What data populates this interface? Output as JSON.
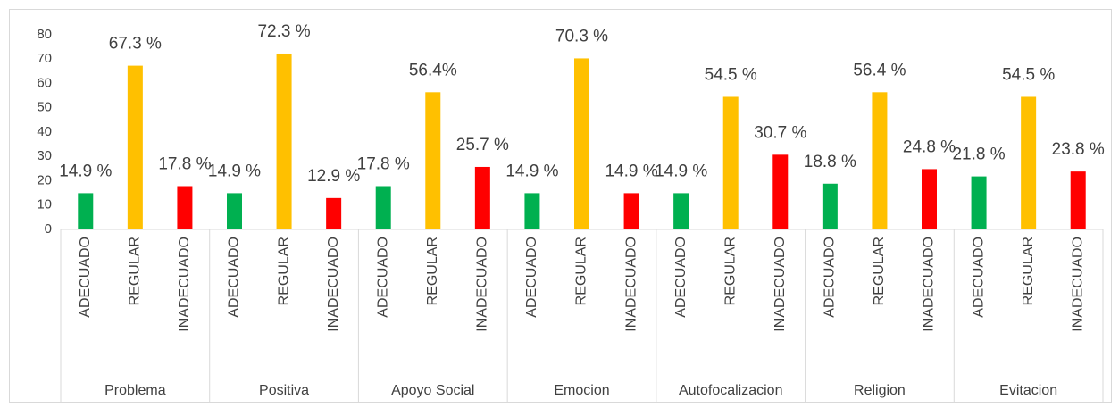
{
  "chart_data": {
    "type": "bar",
    "groups": [
      "Problema",
      "Positiva",
      "Apoyo Social",
      "Emocion",
      "Autofocalizacion",
      "Religion",
      "Evitacion"
    ],
    "categories": [
      "ADECUADO",
      "REGULAR",
      "INADECUADO",
      "ADECUADO",
      "REGULAR",
      "INADECUADO",
      "ADECUADO",
      "REGULAR",
      "INADECUADO",
      "ADECUADO",
      "REGULAR",
      "INADECUADO",
      "ADECUADO",
      "REGULAR",
      "INADECUADO",
      "ADECUADO",
      "REGULAR",
      "INADECUADO",
      "ADECUADO",
      "REGULAR",
      "INADECUADO"
    ],
    "values": [
      14.9,
      67.3,
      17.8,
      14.9,
      72.3,
      12.9,
      17.8,
      56.4,
      25.7,
      14.9,
      70.3,
      14.9,
      14.9,
      54.5,
      30.7,
      18.8,
      56.4,
      24.8,
      21.8,
      54.5,
      23.8
    ],
    "value_labels": [
      "14.9 %",
      "67.3 %",
      "17.8 %",
      "14.9 %",
      "72.3 %",
      "12.9 %",
      "17.8 %",
      "56.4%",
      "25.7 %",
      "14.9 %",
      "70.3 %",
      "14.9 %",
      "14.9 %",
      "54.5 %",
      "30.7 %",
      "18.8 %",
      "56.4 %",
      "24.8 %",
      "21.8 %",
      "54.5 %",
      "23.8 %"
    ],
    "colors": [
      "#00b050",
      "#ffc000",
      "#ff0000"
    ],
    "ylim": [
      0,
      80
    ],
    "yticks": [
      0,
      10,
      20,
      30,
      40,
      50,
      60,
      70,
      80
    ]
  }
}
